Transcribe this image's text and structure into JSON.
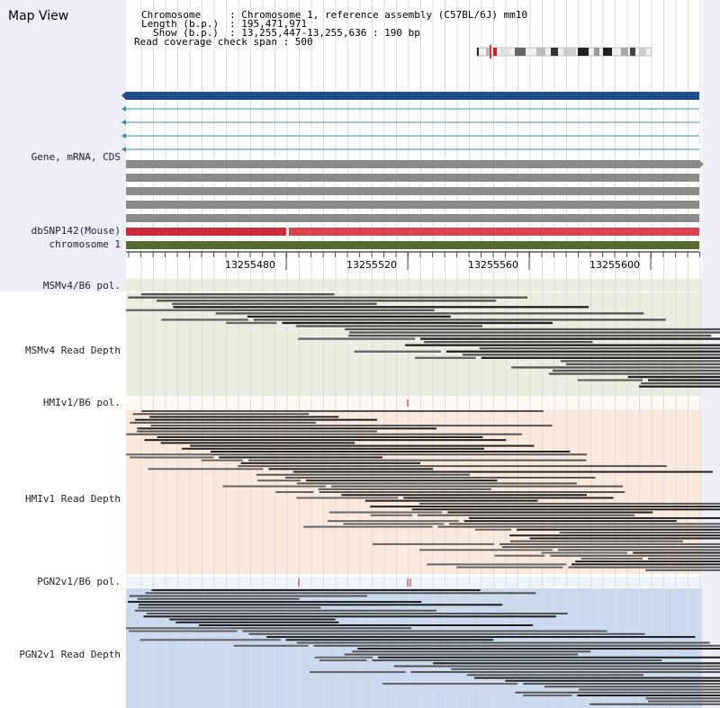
{
  "app": {
    "title": "Map View"
  },
  "info": {
    "chromosome_key": "Chromosome",
    "chromosome_value": ": Chromosome 1, reference assembly (C57BL/6J) mm10",
    "length_key": "Length (b.p.)",
    "length_value": ": 195,471,971",
    "show_key": "Show (b.p.)",
    "show_value": ": 13,255,447-13,255,636 : 190 bp",
    "coverage_text": "Read coverage check span : 500"
  },
  "labels": {
    "gene": "Gene, mRNA, CDS",
    "dbsnp": "dbSNP142(Mouse)",
    "chromosome": "chromosome 1",
    "msm_pol": "MSMv4/B6 pol.",
    "msm_depth": "MSMv4 Read Depth",
    "hmi_pol": "HMIv1/B6 pol.",
    "hmi_depth": "HMIv1 Read Depth",
    "pgn_pol": "PGN2v1/B6 pol.",
    "pgn_depth": "PGN2v1 Read Depth"
  },
  "ruler": {
    "ticks": [
      "13255480",
      "13255520",
      "13255560",
      "13255600"
    ]
  },
  "colors": {
    "gene_blue": "#1f4e8a",
    "transcript_teal": "#3a8fa0",
    "cds_gray": "#8a8a8a",
    "snp_red": "#d94450",
    "chrom_green": "#556b2f",
    "msm_bg": "#e9eedf",
    "hmi_bg": "#fbe9db",
    "pgn_bg": "#c9d9ee",
    "pol_mark": "#cc2222"
  }
}
